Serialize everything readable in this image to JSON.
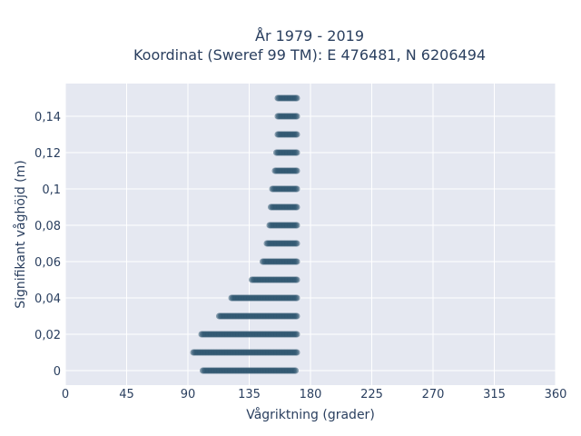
{
  "chart_data": {
    "type": "scatter",
    "title_line1": "År 1979 - 2019",
    "title_line2": "Koordinat (Sweref 99 TM): E 476481, N 6206494",
    "xlabel": "Vågriktning (grader)",
    "ylabel": "Signifikant våghöjd (m)",
    "xlim": [
      0,
      360
    ],
    "ylim": [
      -0.008,
      0.158
    ],
    "x_ticks": [
      0,
      45,
      90,
      135,
      180,
      225,
      270,
      315,
      360
    ],
    "x_tick_labels": [
      "0",
      "45",
      "90",
      "135",
      "180",
      "225",
      "270",
      "315",
      "360"
    ],
    "y_ticks": [
      0,
      0.02,
      0.04,
      0.06,
      0.08,
      0.1,
      0.12,
      0.14
    ],
    "y_tick_labels": [
      "0",
      "0,02",
      "0,04",
      "0,06",
      "0,08",
      "0,1",
      "0,12",
      "0,14"
    ],
    "grid": true,
    "marker_color": "#2e5670",
    "plot_bg": "#e5e8f1",
    "series": [
      {
        "rows": [
          {
            "y": 0.0,
            "x_min": 101,
            "x_max": 169
          },
          {
            "y": 0.01,
            "x_min": 94,
            "x_max": 170
          },
          {
            "y": 0.02,
            "x_min": 100,
            "x_max": 170
          },
          {
            "y": 0.03,
            "x_min": 113,
            "x_max": 170
          },
          {
            "y": 0.04,
            "x_min": 122,
            "x_max": 170
          },
          {
            "y": 0.05,
            "x_min": 137,
            "x_max": 170
          },
          {
            "y": 0.06,
            "x_min": 145,
            "x_max": 170
          },
          {
            "y": 0.07,
            "x_min": 148,
            "x_max": 170
          },
          {
            "y": 0.08,
            "x_min": 150,
            "x_max": 170
          },
          {
            "y": 0.09,
            "x_min": 151,
            "x_max": 170
          },
          {
            "y": 0.1,
            "x_min": 152,
            "x_max": 170
          },
          {
            "y": 0.11,
            "x_min": 154,
            "x_max": 170
          },
          {
            "y": 0.12,
            "x_min": 155,
            "x_max": 170
          },
          {
            "y": 0.13,
            "x_min": 156,
            "x_max": 170
          },
          {
            "y": 0.14,
            "x_min": 156,
            "x_max": 170
          },
          {
            "y": 0.15,
            "x_min": 156,
            "x_max": 170
          }
        ]
      }
    ]
  }
}
